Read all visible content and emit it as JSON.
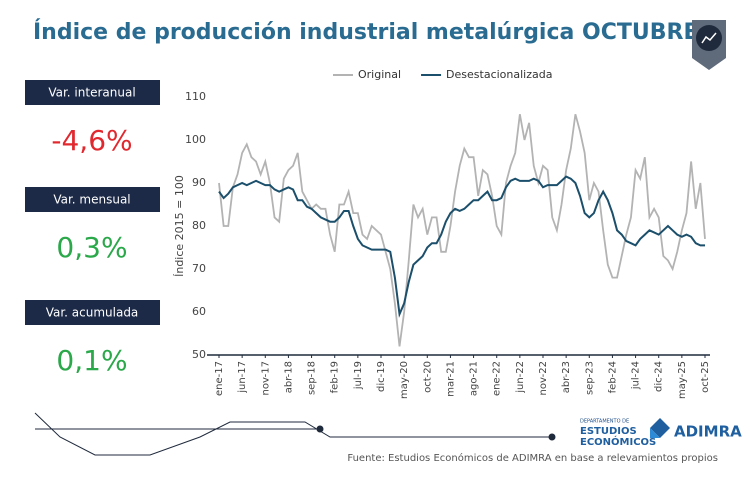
{
  "title": "Índice de producción industrial metalúrgica OCTUBRE",
  "kpis": [
    {
      "label": "Var. interanual",
      "value": "-4,6%",
      "color": "#e0282e"
    },
    {
      "label": "Var. mensual",
      "value": "0,3%",
      "color": "#2aa84a"
    },
    {
      "label": "Var. acumulada",
      "value": "0,1%",
      "color": "#2aa84a"
    }
  ],
  "source": "Fuente: Estudios Económicos de ADIMRA en base a relevamientos propios",
  "logo": {
    "department": "DEPARTAMENTO DE",
    "line1": "ESTUDIOS",
    "line2": "ECONÓMICOS",
    "brand": "ADIMRA"
  },
  "chart_data": {
    "type": "line",
    "y_label": "Índice 2015 = 100",
    "categories": [
      "ene-17",
      null,
      null,
      null,
      null,
      "jun-17",
      null,
      null,
      null,
      null,
      "nov-17",
      null,
      null,
      null,
      null,
      "abr-18",
      null,
      null,
      null,
      null,
      "sep-18",
      null,
      null,
      null,
      null,
      "feb-19",
      null,
      null,
      null,
      null,
      "jul-19",
      null,
      null,
      null,
      null,
      "dic-19",
      null,
      null,
      null,
      null,
      "may-20",
      null,
      null,
      null,
      null,
      "oct-20",
      null,
      null,
      null,
      null,
      "mar-21",
      null,
      null,
      null,
      null,
      "ago-21",
      null,
      null,
      null,
      null,
      "ene-22",
      null,
      null,
      null,
      null,
      "jun-22",
      null,
      null,
      null,
      null,
      "nov-22",
      null,
      null,
      null,
      null,
      "abr-23",
      null,
      null,
      null,
      null,
      "sep-23",
      null,
      null,
      null,
      null,
      "feb-24",
      null,
      null,
      null,
      null,
      "jul-24",
      null,
      null,
      null,
      null,
      "dic-24",
      null,
      null,
      null,
      null,
      "may-25",
      null,
      null,
      null,
      null,
      "oct-25"
    ],
    "series": [
      {
        "name": "Original",
        "color": "#b3b3b3",
        "values": [
          90,
          80,
          80,
          89,
          92,
          97,
          99,
          96,
          95,
          92,
          95,
          90,
          82,
          81,
          91,
          93,
          94,
          97,
          88,
          86,
          84,
          85,
          84,
          84,
          78,
          74,
          85,
          85,
          88,
          83,
          83,
          78,
          77,
          80,
          79,
          78,
          74,
          70,
          62,
          52,
          60,
          72,
          85,
          82,
          84,
          78,
          82,
          82,
          74,
          74,
          80,
          88,
          94,
          98,
          96,
          96,
          87,
          93,
          92,
          87,
          80,
          78,
          90,
          94,
          97,
          106,
          100,
          104,
          94,
          90,
          94,
          93,
          82,
          79,
          85,
          93,
          98,
          106,
          102,
          97,
          86,
          90,
          88,
          79,
          71,
          68,
          68,
          73,
          78,
          82,
          93,
          91,
          96,
          82,
          84,
          82,
          73,
          72,
          70,
          74,
          79,
          83,
          95,
          84,
          90,
          77
        ]
      },
      {
        "name": "Desestacionalizada",
        "color": "#1b4f6b",
        "values": [
          88,
          86.5,
          87.5,
          89,
          89.5,
          90,
          89.5,
          90,
          90.5,
          90,
          89.5,
          89.5,
          88.5,
          88,
          88.5,
          89,
          88.5,
          86,
          86,
          84.5,
          84,
          83,
          82,
          81.5,
          81,
          81,
          82,
          83.5,
          83.5,
          80,
          77,
          75.5,
          75,
          74.5,
          74.5,
          74.5,
          74.5,
          74,
          68,
          59.5,
          62,
          67,
          71,
          72,
          73,
          75,
          76,
          76,
          78,
          81,
          83,
          84,
          83.5,
          84,
          85,
          86,
          86,
          87,
          88,
          86,
          86,
          86.5,
          89,
          90.5,
          91,
          90.5,
          90.5,
          90.5,
          91,
          90.5,
          89,
          89.5,
          89.5,
          89.5,
          90.5,
          91.5,
          91,
          90,
          87,
          83,
          82,
          83,
          86,
          88,
          86,
          83,
          79,
          78,
          76.5,
          76,
          75.5,
          77,
          78,
          79,
          78.5,
          78,
          79,
          80,
          79,
          78,
          77.5,
          78,
          77.5,
          76,
          75.5,
          75.5
        ]
      }
    ],
    "ylim": [
      50,
      110
    ],
    "yticks": [
      50,
      60,
      70,
      80,
      90,
      100,
      110
    ]
  }
}
